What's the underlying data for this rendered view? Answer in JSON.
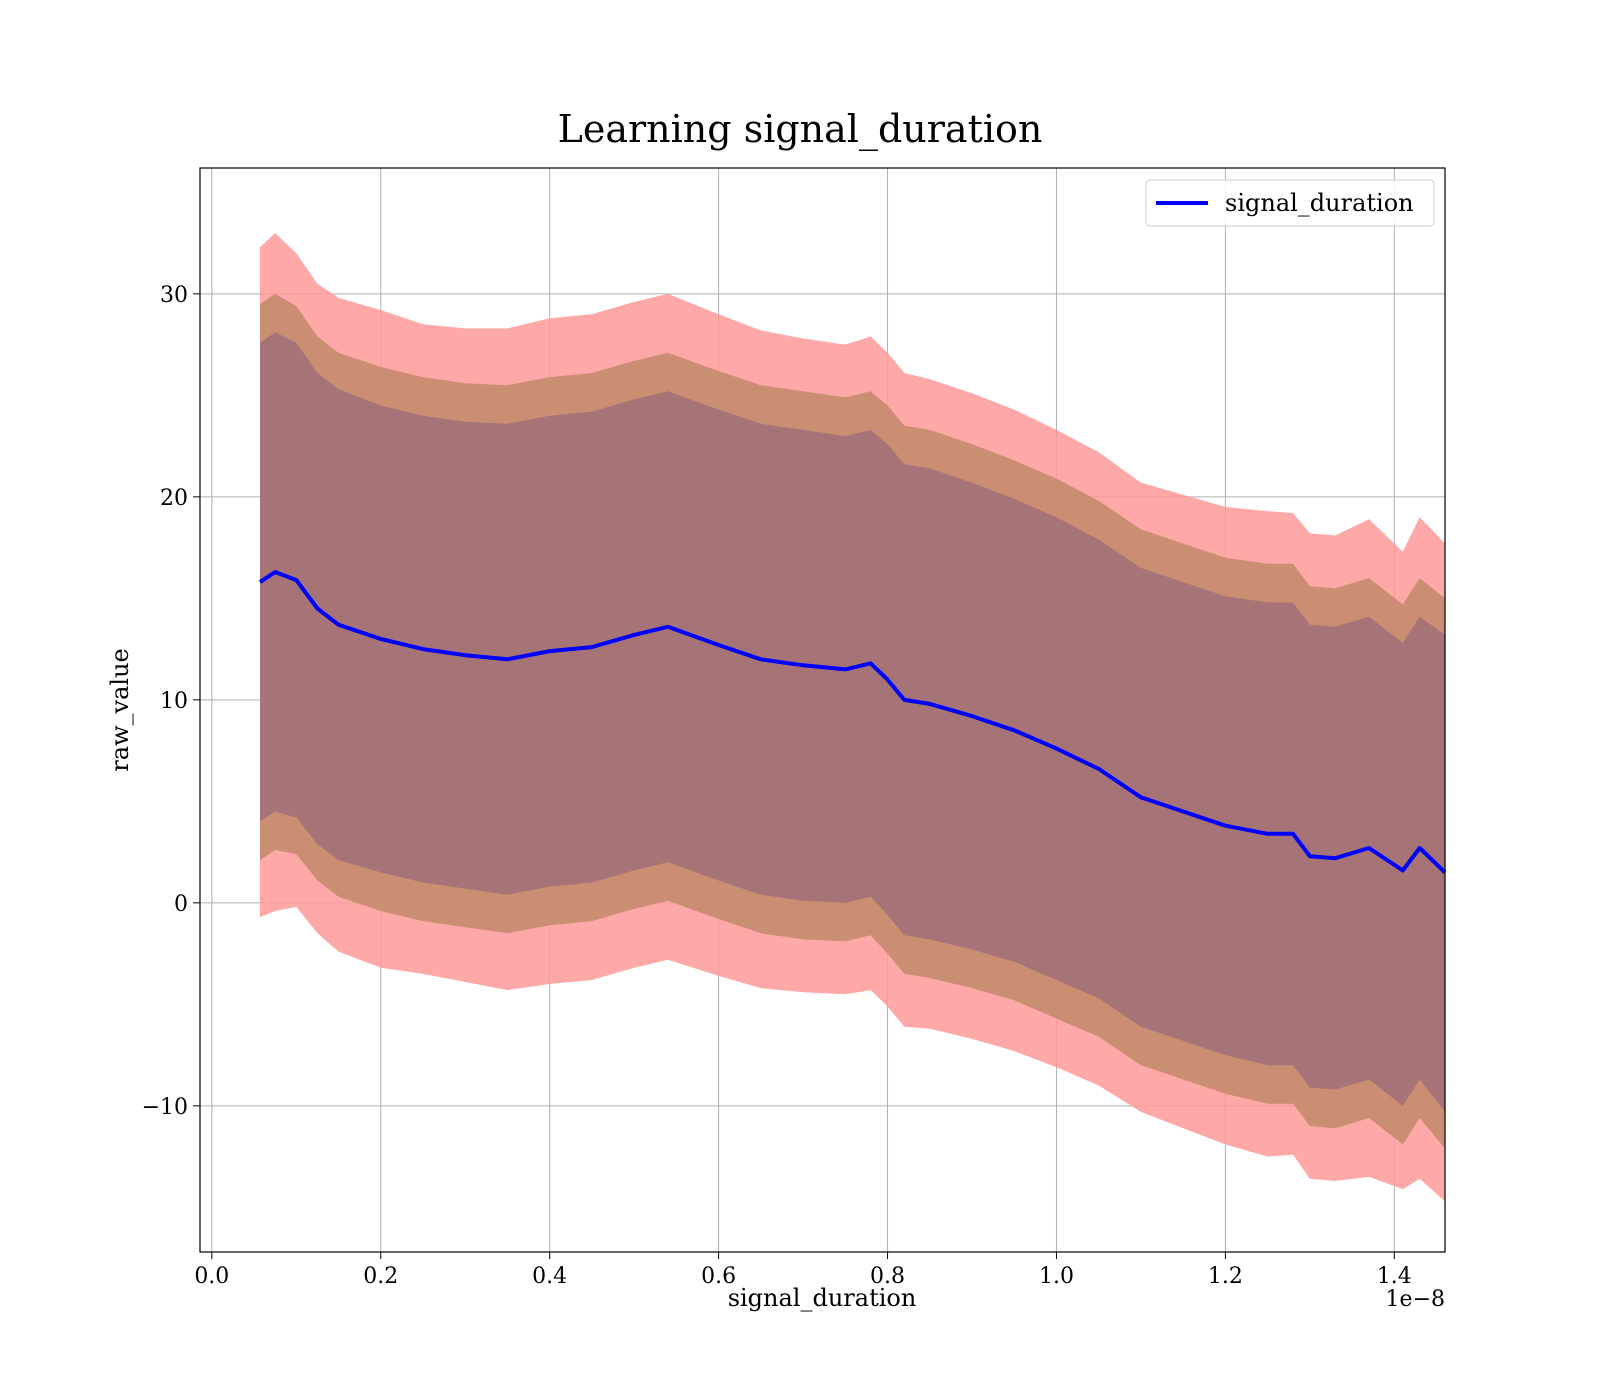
{
  "chart_data": {
    "type": "line",
    "title": "Learning signal_duration",
    "xlabel": "signal_duration",
    "ylabel": "raw_value",
    "x_offset_label": "1e−8",
    "xlim": [
      -0.014,
      1.46
    ],
    "ylim": [
      -17.2,
      36.2
    ],
    "x_ticks": [
      0.0,
      0.2,
      0.4,
      0.6,
      0.8,
      1.0,
      1.2,
      1.4
    ],
    "x_tick_labels": [
      "0.0",
      "0.2",
      "0.4",
      "0.6",
      "0.8",
      "1.0",
      "1.2",
      "1.4"
    ],
    "y_ticks": [
      -10,
      0,
      10,
      20,
      30
    ],
    "y_tick_labels": [
      "−10",
      "0",
      "10",
      "20",
      "30"
    ],
    "grid": true,
    "legend_position": "top-right",
    "colors": {
      "line": "#0000ff",
      "band_outer": "#ff9999",
      "band_middle": "#c28a6a",
      "band_inner": "#a07078"
    },
    "series": [
      {
        "name": "signal_duration",
        "x": [
          0.057,
          0.075,
          0.1,
          0.125,
          0.15,
          0.2,
          0.25,
          0.3,
          0.35,
          0.4,
          0.45,
          0.5,
          0.54,
          0.6,
          0.65,
          0.7,
          0.75,
          0.78,
          0.8,
          0.82,
          0.85,
          0.9,
          0.95,
          1.0,
          1.05,
          1.1,
          1.15,
          1.2,
          1.25,
          1.28,
          1.3,
          1.33,
          1.37,
          1.41,
          1.43,
          1.46
        ],
        "y": [
          15.8,
          16.3,
          15.9,
          14.5,
          13.7,
          13.0,
          12.5,
          12.2,
          12.0,
          12.4,
          12.6,
          13.2,
          13.6,
          12.7,
          12.0,
          11.7,
          11.5,
          11.8,
          11.0,
          10.0,
          9.8,
          9.2,
          8.5,
          7.6,
          6.6,
          5.2,
          4.5,
          3.8,
          3.4,
          3.4,
          2.3,
          2.2,
          2.7,
          1.6,
          2.7,
          1.5
        ]
      }
    ],
    "bands": [
      {
        "level": "outer",
        "upper": [
          32.3,
          33.0,
          32.0,
          30.5,
          29.8,
          29.2,
          28.5,
          28.3,
          28.3,
          28.8,
          29.0,
          29.6,
          30.0,
          29.0,
          28.2,
          27.8,
          27.5,
          27.9,
          27.1,
          26.1,
          25.8,
          25.1,
          24.3,
          23.3,
          22.2,
          20.7,
          20.1,
          19.5,
          19.3,
          19.2,
          18.2,
          18.1,
          18.9,
          17.3,
          19.0,
          17.7
        ],
        "lower": [
          -0.7,
          -0.4,
          -0.2,
          -1.5,
          -2.4,
          -3.2,
          -3.5,
          -3.9,
          -4.3,
          -4.0,
          -3.8,
          -3.2,
          -2.8,
          -3.6,
          -4.2,
          -4.4,
          -4.5,
          -4.3,
          -5.1,
          -6.1,
          -6.2,
          -6.7,
          -7.3,
          -8.1,
          -9.0,
          -10.3,
          -11.1,
          -11.9,
          -12.5,
          -12.4,
          -13.6,
          -13.7,
          -13.5,
          -14.1,
          -13.6,
          -14.7
        ]
      },
      {
        "level": "middle",
        "upper": [
          29.5,
          30.0,
          29.4,
          27.9,
          27.1,
          26.4,
          25.9,
          25.6,
          25.5,
          25.9,
          26.1,
          26.7,
          27.1,
          26.2,
          25.5,
          25.2,
          24.9,
          25.2,
          24.5,
          23.5,
          23.3,
          22.6,
          21.8,
          20.9,
          19.8,
          18.4,
          17.7,
          17.0,
          16.7,
          16.7,
          15.6,
          15.5,
          16.0,
          14.7,
          16.0,
          15.0
        ],
        "lower": [
          2.1,
          2.6,
          2.4,
          1.1,
          0.3,
          -0.4,
          -0.9,
          -1.2,
          -1.5,
          -1.1,
          -0.9,
          -0.3,
          0.1,
          -0.8,
          -1.5,
          -1.8,
          -1.9,
          -1.6,
          -2.5,
          -3.5,
          -3.7,
          -4.2,
          -4.8,
          -5.7,
          -6.6,
          -8.0,
          -8.7,
          -9.4,
          -9.9,
          -9.9,
          -11.0,
          -11.1,
          -10.6,
          -11.9,
          -10.6,
          -12.1
        ]
      },
      {
        "level": "inner",
        "upper": [
          27.6,
          28.1,
          27.6,
          26.1,
          25.3,
          24.5,
          24.0,
          23.7,
          23.6,
          24.0,
          24.2,
          24.8,
          25.2,
          24.3,
          23.6,
          23.3,
          23.0,
          23.3,
          22.6,
          21.6,
          21.4,
          20.7,
          19.9,
          19.0,
          17.9,
          16.5,
          15.8,
          15.1,
          14.8,
          14.8,
          13.7,
          13.6,
          14.1,
          12.8,
          14.1,
          13.2
        ],
        "lower": [
          4.0,
          4.5,
          4.2,
          2.9,
          2.1,
          1.5,
          1.0,
          0.7,
          0.4,
          0.8,
          1.0,
          1.6,
          2.0,
          1.1,
          0.4,
          0.1,
          0.0,
          0.3,
          -0.6,
          -1.6,
          -1.8,
          -2.3,
          -2.9,
          -3.8,
          -4.7,
          -6.1,
          -6.8,
          -7.5,
          -8.0,
          -8.0,
          -9.1,
          -9.2,
          -8.7,
          -10.0,
          -8.7,
          -10.3
        ]
      }
    ]
  }
}
